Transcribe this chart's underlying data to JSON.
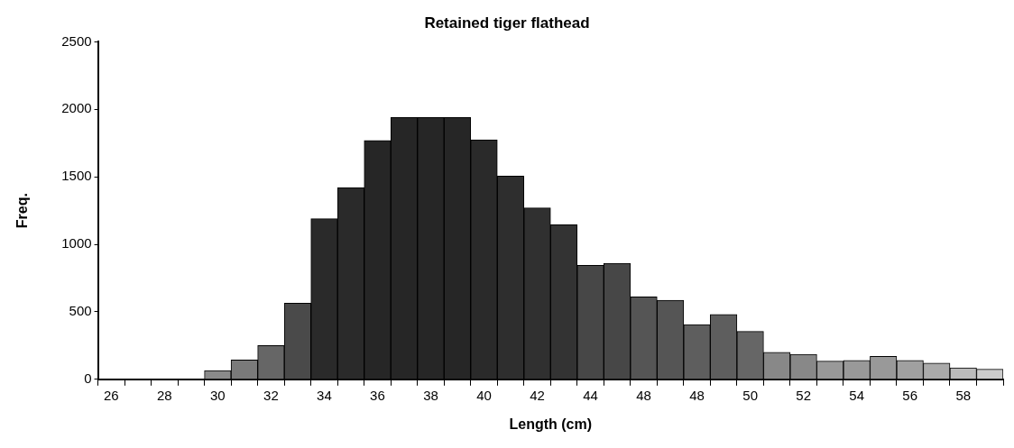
{
  "chart_data": {
    "type": "bar",
    "title": "Retained tiger flathead",
    "xlabel": "Length (cm)",
    "ylabel": "Freq.",
    "categories": [
      "26",
      null,
      "28",
      null,
      "30",
      null,
      "32",
      null,
      "34",
      null,
      "36",
      null,
      "38",
      null,
      "40",
      null,
      "42",
      null,
      "44",
      null,
      "48",
      null,
      "48",
      null,
      "50",
      null,
      "52",
      null,
      "54",
      null,
      "56",
      null,
      "58",
      null
    ],
    "values": [
      null,
      null,
      null,
      null,
      65,
      144,
      250,
      564,
      1190,
      1420,
      1770,
      1940,
      1940,
      1940,
      1775,
      1505,
      1270,
      1145,
      845,
      860,
      610,
      585,
      405,
      480,
      355,
      200,
      185,
      135,
      140,
      170,
      140,
      120,
      85,
      75
    ],
    "colors": [
      "#888888",
      "#888888",
      "#888888",
      "#888888",
      "#8a8a8a",
      "#7a7a7a",
      "#666666",
      "#4a4a4a",
      "#2a2a2a",
      "#2a2a2a",
      "#262626",
      "#262626",
      "#262626",
      "#262626",
      "#2a2a2a",
      "#2e2e2e",
      "#303030",
      "#333333",
      "#474747",
      "#474747",
      "#555555",
      "#555555",
      "#5e5e5e",
      "#5e5e5e",
      "#666666",
      "#888888",
      "#888888",
      "#999999",
      "#999999",
      "#999999",
      "#a0a0a0",
      "#aaaaaa",
      "#bbbbbb",
      "#cccccc"
    ],
    "ylim": [
      0,
      2500
    ],
    "yticks": [
      0,
      500,
      1000,
      1500,
      2000,
      2500
    ],
    "grid": false,
    "legend": false
  }
}
